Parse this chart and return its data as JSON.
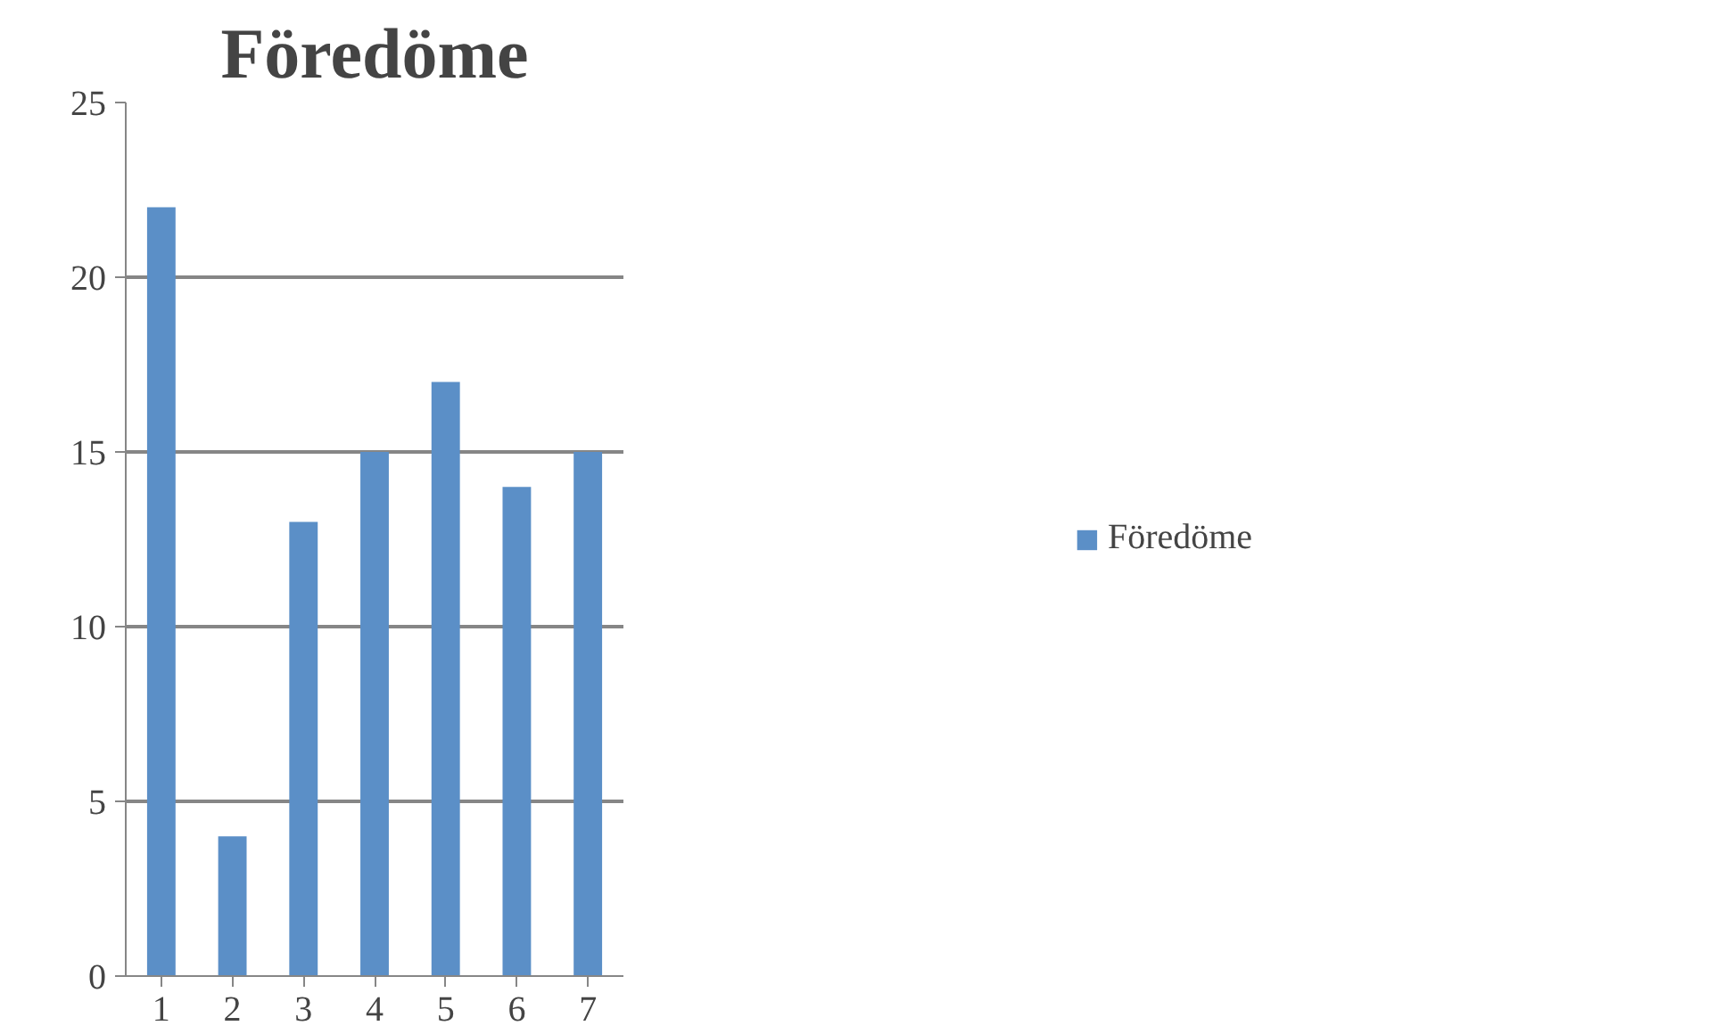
{
  "chart_data": {
    "type": "bar",
    "title": "Föredöme",
    "categories": [
      "1",
      "2",
      "3",
      "4",
      "5",
      "6",
      "7"
    ],
    "series": [
      {
        "name": "Föredöme",
        "color": "#5b8fc7",
        "values": [
          22,
          4,
          13,
          15,
          17,
          14,
          15
        ]
      }
    ],
    "ylim": [
      0,
      25
    ],
    "yticks": [
      0,
      5,
      10,
      15,
      20,
      25
    ],
    "grid": "y",
    "legend": "right"
  }
}
